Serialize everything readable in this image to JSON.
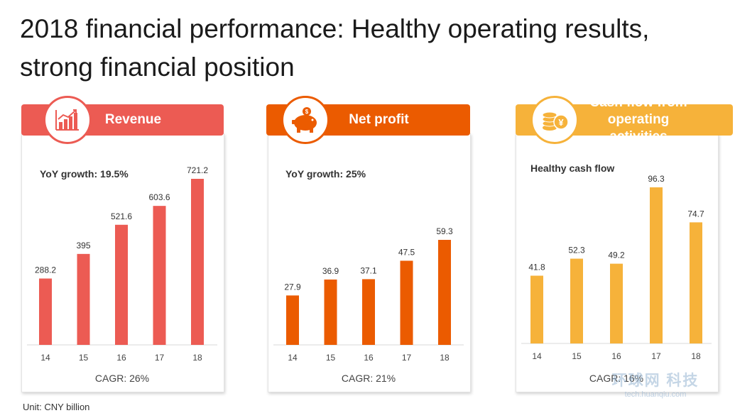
{
  "title": "2018 financial performance: Healthy operating results, strong financial position",
  "unit": "Unit: CNY billion",
  "watermark": {
    "cn": "环球网 科技",
    "url": "tech.huanqiu.com"
  },
  "colors": {
    "revenue": "#ec5b53",
    "net_profit": "#eb5b00",
    "cash_flow": "#f6b23a"
  },
  "panels": [
    {
      "header": "Revenue",
      "note": "YoY growth: 19.5%",
      "cagr": "CAGR: 26%",
      "icon": "bar-chart-growth-icon"
    },
    {
      "header": "Net profit",
      "note": "YoY growth: 25%",
      "cagr": "CAGR: 21%",
      "icon": "piggy-bank-icon"
    },
    {
      "header": "Cash flow from operating activities",
      "note": "Healthy cash flow",
      "cagr": "CAGR: 16%",
      "icon": "coins-yuan-icon"
    }
  ],
  "chart_data": [
    {
      "type": "bar",
      "title": "Revenue",
      "categories": [
        "14",
        "15",
        "16",
        "17",
        "18"
      ],
      "values": [
        288.2,
        395,
        521.6,
        603.6,
        721.2
      ],
      "value_labels": [
        "288.2",
        "395",
        "521.6",
        "603.6",
        "721.2"
      ]
    },
    {
      "type": "bar",
      "title": "Net profit",
      "categories": [
        "14",
        "15",
        "16",
        "17",
        "18"
      ],
      "values": [
        27.9,
        36.9,
        37.1,
        47.5,
        59.3
      ],
      "value_labels": [
        "27.9",
        "36.9",
        "37.1",
        "47.5",
        "59.3"
      ]
    },
    {
      "type": "bar",
      "title": "Cash flow from operating activities",
      "categories": [
        "14",
        "15",
        "16",
        "17",
        "18"
      ],
      "values": [
        41.8,
        52.3,
        49.2,
        96.3,
        74.7
      ],
      "value_labels": [
        "41.8",
        "52.3",
        "49.2",
        "96.3",
        "74.7"
      ]
    }
  ]
}
